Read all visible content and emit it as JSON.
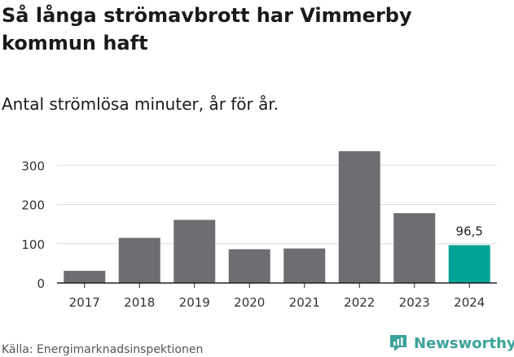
{
  "chart_data": {
    "type": "bar",
    "title": "Så långa strömavbrott har Vimmerby kommun haft",
    "subtitle": "Antal strömlösa minuter, år för år.",
    "xlabel": "",
    "ylabel": "",
    "categories": [
      "2017",
      "2018",
      "2019",
      "2020",
      "2021",
      "2022",
      "2023",
      "2024"
    ],
    "values": [
      31,
      115,
      161,
      86,
      88,
      336,
      178,
      96.5
    ],
    "ylim": [
      0,
      350
    ],
    "yticks": [
      0,
      100,
      200,
      300
    ],
    "data_labels": [
      {
        "index": 7,
        "text": "96,5"
      }
    ],
    "grid": true,
    "colors": {
      "default": "#6e6d72",
      "highlight": "#00a396"
    },
    "highlight_index": 7
  },
  "source": "Källa: Energimarknadsinspektionen",
  "brand": {
    "name": "Newsworthy",
    "icon": "newsworthy-logo-icon",
    "color": "#3aa39a"
  }
}
